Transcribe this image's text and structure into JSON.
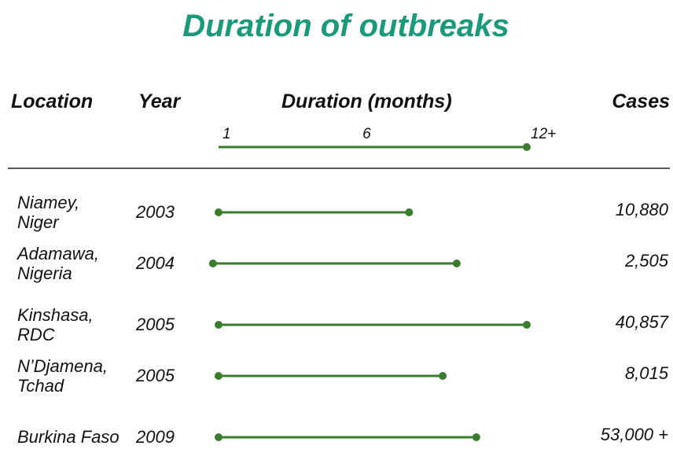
{
  "chart_data": {
    "type": "range",
    "title": "Duration of outbreaks",
    "headers": {
      "location": "Location",
      "year": "Year",
      "duration": "Duration (months)",
      "cases": "Cases"
    },
    "categories": [
      "Niamey,\nNiger",
      "Adamawa,\nNigeria",
      "Kinshasa,\nRDC",
      "N’Djamena,\nTchad",
      "Burkina Faso"
    ],
    "years": [
      "2003",
      "2004",
      "2005",
      "2005",
      "2009"
    ],
    "start": [
      1,
      0.8,
      1,
      1,
      1
    ],
    "end": [
      7.8,
      9.5,
      12,
      9,
      10.2
    ],
    "cases": [
      "10,880",
      "2,505",
      "40,857",
      "8,015",
      "53,000 +"
    ],
    "xlim": [
      1,
      12
    ],
    "xticks": [
      1,
      6,
      {
        "value": 12,
        "label": "12+"
      }
    ],
    "color": "#3a7d2c"
  }
}
